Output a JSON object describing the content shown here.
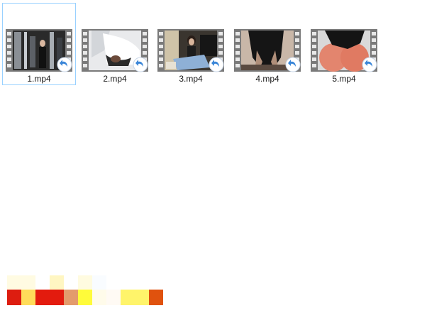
{
  "colors": {
    "selection_border": "#99d1ff",
    "film_strip": "#7a7a7a",
    "shortcut_arrow": "#3a86d8"
  },
  "files": [
    {
      "name": "1.mp4",
      "icon": "video-file-icon",
      "thumbnail": "office-scene",
      "selected": true
    },
    {
      "name": "2.mp4",
      "icon": "video-file-icon",
      "thumbnail": "white-shirt",
      "selected": false
    },
    {
      "name": "3.mp4",
      "icon": "video-file-icon",
      "thumbnail": "woman-at-desk",
      "selected": false
    },
    {
      "name": "4.mp4",
      "icon": "video-file-icon",
      "thumbnail": "dark-figure",
      "selected": false
    },
    {
      "name": "5.mp4",
      "icon": "video-file-icon",
      "thumbnail": "skin-tone",
      "selected": false
    }
  ]
}
